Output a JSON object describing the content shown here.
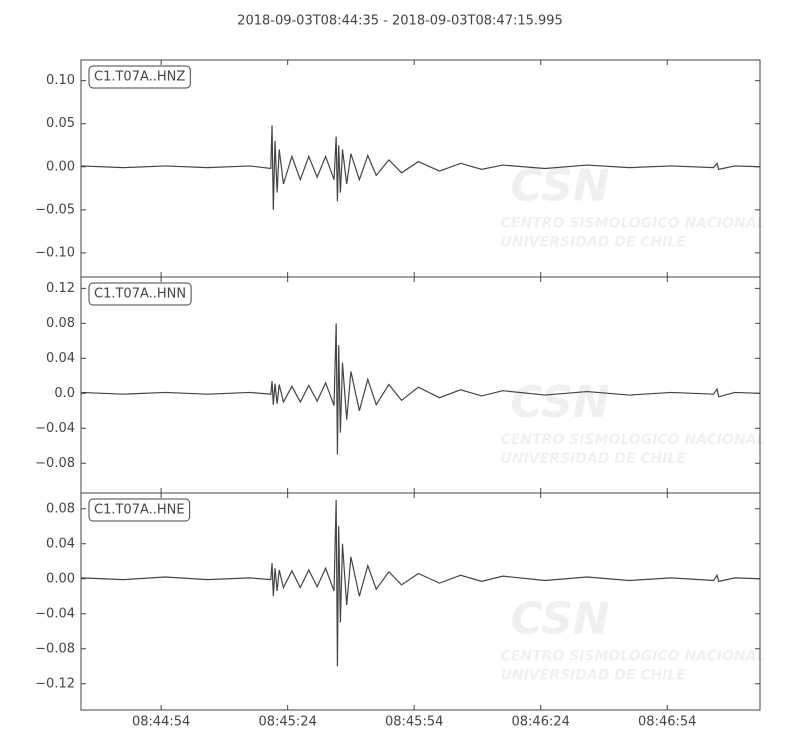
{
  "title": "2018-09-03T08:44:35  -  2018-09-03T08:47:15.995",
  "watermark": {
    "logo": "CSN",
    "line1": "CENTRO SISMOLOGICO NACIONAL",
    "line2": "UNIVERSIDAD DE CHILE"
  },
  "chart_data": [
    {
      "type": "line",
      "x": [
        0,
        10,
        20,
        30,
        40,
        45,
        45.3,
        45.6,
        46,
        46.5,
        47,
        48,
        50,
        52,
        54,
        56,
        58,
        60,
        60.5,
        60.8,
        61.1,
        61.5,
        62,
        63,
        64,
        66,
        68,
        70,
        73,
        76,
        80,
        85,
        90,
        95,
        100,
        110,
        120,
        130,
        140,
        150,
        150.8,
        151.2,
        155,
        161
      ],
      "series": [
        {
          "name": "C1.T07A..HNZ",
          "color": "#444444",
          "values": [
            0.001,
            -0.001,
            0.001,
            -0.001,
            0.001,
            -0.002,
            0.048,
            -0.05,
            0.03,
            -0.03,
            0.02,
            -0.02,
            0.012,
            -0.015,
            0.012,
            -0.012,
            0.012,
            -0.015,
            0.035,
            -0.04,
            0.025,
            -0.03,
            0.02,
            -0.02,
            0.015,
            -0.015,
            0.013,
            -0.01,
            0.008,
            -0.007,
            0.006,
            -0.005,
            0.004,
            -0.003,
            0.002,
            -0.002,
            0.002,
            -0.001,
            0.001,
            -0.001,
            0.004,
            -0.003,
            0.001,
            0
          ]
        }
      ],
      "xlim": [
        0,
        160.995
      ],
      "ylim": [
        -0.128,
        0.124
      ],
      "yticks": [
        {
          "value": -0.1,
          "label": "−0.10"
        },
        {
          "value": -0.05,
          "label": "−0.05"
        },
        {
          "value": 0,
          "label": "0.00"
        },
        {
          "value": 0.05,
          "label": "0.05"
        },
        {
          "value": 0.1,
          "label": "0.10"
        }
      ]
    },
    {
      "type": "line",
      "x": [
        0,
        10,
        20,
        30,
        40,
        45,
        45.3,
        45.6,
        46,
        46.5,
        47,
        48,
        50,
        52,
        54,
        56,
        58,
        60,
        60.5,
        60.8,
        61.1,
        61.5,
        62,
        63,
        64,
        66,
        68,
        70,
        73,
        76,
        80,
        85,
        90,
        95,
        100,
        110,
        120,
        130,
        140,
        150,
        150.8,
        151.2,
        155,
        161
      ],
      "series": [
        {
          "name": "C1.T07A..HNN",
          "color": "#444444",
          "values": [
            0.001,
            -0.001,
            0.001,
            -0.001,
            0.001,
            -0.001,
            0.014,
            -0.013,
            0.011,
            -0.012,
            0.01,
            -0.01,
            0.008,
            -0.01,
            0.009,
            -0.009,
            0.012,
            -0.014,
            0.08,
            -0.07,
            0.055,
            -0.045,
            0.035,
            -0.03,
            0.025,
            -0.02,
            0.016,
            -0.013,
            0.01,
            -0.008,
            0.007,
            -0.005,
            0.004,
            -0.003,
            0.003,
            -0.002,
            0.002,
            -0.002,
            0.001,
            -0.001,
            0.005,
            -0.004,
            0.001,
            0
          ]
        }
      ],
      "xlim": [
        0,
        160.995
      ],
      "ylim": [
        -0.114,
        0.133
      ],
      "yticks": [
        {
          "value": -0.08,
          "label": "−0.08"
        },
        {
          "value": -0.04,
          "label": "−0.04"
        },
        {
          "value": 0,
          "label": "0.0"
        },
        {
          "value": 0.04,
          "label": "0.04"
        },
        {
          "value": 0.08,
          "label": "0.08"
        },
        {
          "value": 0.12,
          "label": "0.12"
        }
      ]
    },
    {
      "type": "line",
      "x": [
        0,
        10,
        20,
        30,
        40,
        45,
        45.3,
        45.6,
        46,
        46.5,
        47,
        48,
        50,
        52,
        54,
        56,
        58,
        60,
        60.5,
        60.8,
        61.1,
        61.5,
        62,
        63,
        64,
        66,
        68,
        70,
        73,
        76,
        80,
        85,
        90,
        95,
        100,
        110,
        120,
        130,
        140,
        150,
        150.8,
        151.2,
        155,
        161
      ],
      "series": [
        {
          "name": "C1.T07A..HNE",
          "color": "#444444",
          "values": [
            0.001,
            -0.001,
            0.002,
            -0.001,
            0.001,
            -0.001,
            0.018,
            -0.02,
            0.012,
            -0.014,
            0.01,
            -0.01,
            0.009,
            -0.01,
            0.01,
            -0.009,
            0.012,
            -0.014,
            0.09,
            -0.1,
            0.06,
            -0.05,
            0.04,
            -0.03,
            0.025,
            -0.02,
            0.015,
            -0.012,
            0.008,
            -0.007,
            0.006,
            -0.005,
            0.004,
            -0.003,
            0.003,
            -0.002,
            0.002,
            -0.002,
            0.001,
            -0.002,
            0.004,
            -0.003,
            0.001,
            0
          ]
        }
      ],
      "xlim": [
        0,
        160.995
      ],
      "ylim": [
        -0.15,
        0.098
      ],
      "yticks": [
        {
          "value": -0.12,
          "label": "−0.12"
        },
        {
          "value": -0.08,
          "label": "−0.08"
        },
        {
          "value": -0.04,
          "label": "−0.04"
        },
        {
          "value": 0,
          "label": "0.00"
        },
        {
          "value": 0.04,
          "label": "0.04"
        },
        {
          "value": 0.08,
          "label": "0.08"
        }
      ],
      "xticks": [
        {
          "value": 19,
          "label": "08:44:54"
        },
        {
          "value": 49,
          "label": "08:45:24"
        },
        {
          "value": 79,
          "label": "08:45:54"
        },
        {
          "value": 109,
          "label": "08:46:24"
        },
        {
          "value": 139,
          "label": "08:46:54"
        }
      ]
    }
  ]
}
